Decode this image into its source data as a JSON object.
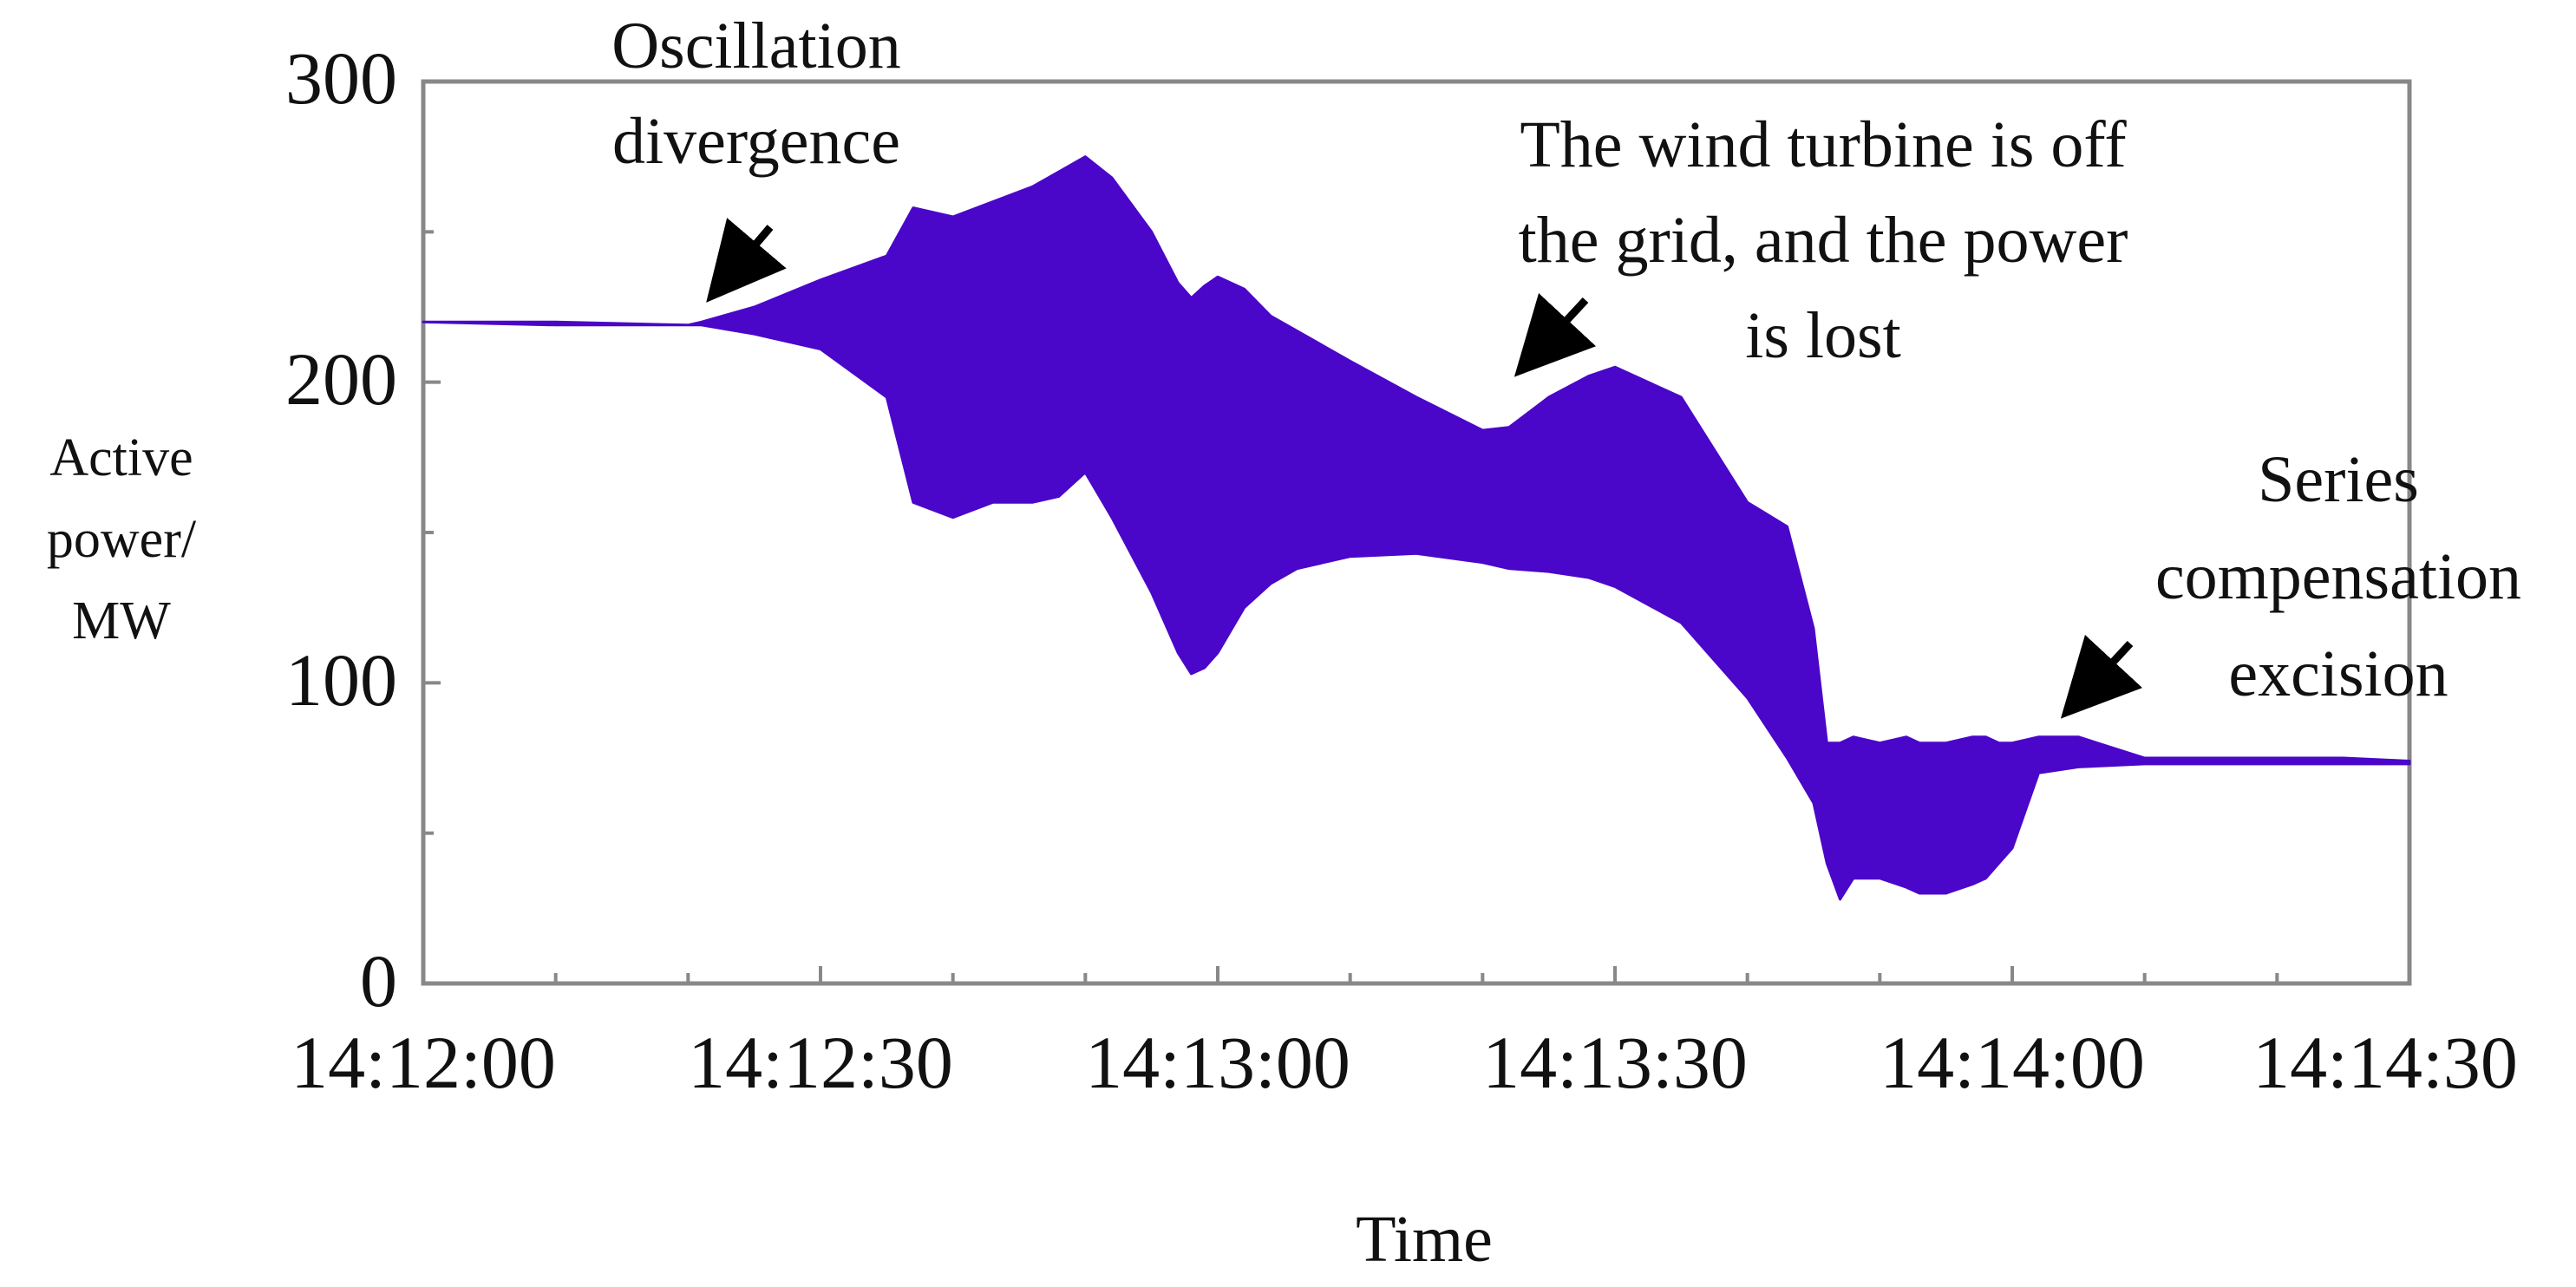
{
  "chart_data": {
    "type": "area",
    "title": "",
    "xlabel": "Time",
    "ylabel_lines": [
      "Active",
      "power/",
      "MW"
    ],
    "xlim": [
      0,
      150
    ],
    "ylim": [
      0,
      300
    ],
    "x_tick_labels": [
      "14:12:00",
      "14:12:30",
      "14:13:00",
      "14:13:30",
      "14:14:00",
      "14:14:30"
    ],
    "x_tick_values": [
      0,
      30,
      60,
      90,
      120,
      150
    ],
    "x_minor_tick_values": [
      10,
      20,
      40,
      50,
      70,
      80,
      100,
      110,
      130,
      140
    ],
    "y_tick_labels": [
      "0",
      "100",
      "200",
      "300"
    ],
    "y_tick_values": [
      0,
      100,
      200,
      300
    ],
    "y_minor_tick_values": [
      50,
      150,
      250
    ],
    "grid": false,
    "series": [
      {
        "fill_color": "#4a06c9",
        "x": [
          0,
          10,
          20,
          21,
          25,
          30,
          35,
          37,
          40,
          43,
          46,
          48,
          50,
          52,
          55,
          57,
          58,
          59,
          60,
          62,
          64,
          66,
          70,
          75,
          80,
          82,
          85,
          88,
          90,
          95,
          100,
          103,
          105,
          106,
          107,
          108,
          110,
          112,
          113,
          115,
          117,
          118,
          119,
          120,
          122,
          125,
          130,
          135,
          140,
          145,
          150
        ],
        "upper": [
          220,
          220,
          219,
          220,
          225,
          234,
          242,
          258,
          255,
          260,
          265,
          270,
          275,
          268,
          250,
          233,
          228,
          232,
          235,
          231,
          222,
          217,
          207,
          195,
          184,
          185,
          195,
          202,
          205,
          195,
          160,
          152,
          118,
          80,
          80,
          82,
          80,
          82,
          80,
          80,
          82,
          82,
          80,
          80,
          82,
          82,
          75,
          75,
          75,
          75,
          74
        ],
        "lower": [
          220,
          219,
          219,
          219,
          216,
          211,
          195,
          160,
          155,
          160,
          160,
          162,
          170,
          155,
          130,
          110,
          103,
          105,
          110,
          125,
          133,
          138,
          142,
          143,
          140,
          138,
          137,
          135,
          132,
          120,
          95,
          75,
          60,
          40,
          28,
          35,
          35,
          32,
          30,
          30,
          33,
          35,
          40,
          45,
          70,
          72,
          73,
          73,
          73,
          73,
          73
        ]
      }
    ],
    "annotations": [
      {
        "lines": [
          "Oscillation",
          "divergence"
        ]
      },
      {
        "lines": [
          "The wind turbine is off",
          "the grid, and the power",
          "is lost"
        ]
      },
      {
        "lines": [
          "Series",
          "compensation",
          "excision"
        ]
      }
    ]
  }
}
